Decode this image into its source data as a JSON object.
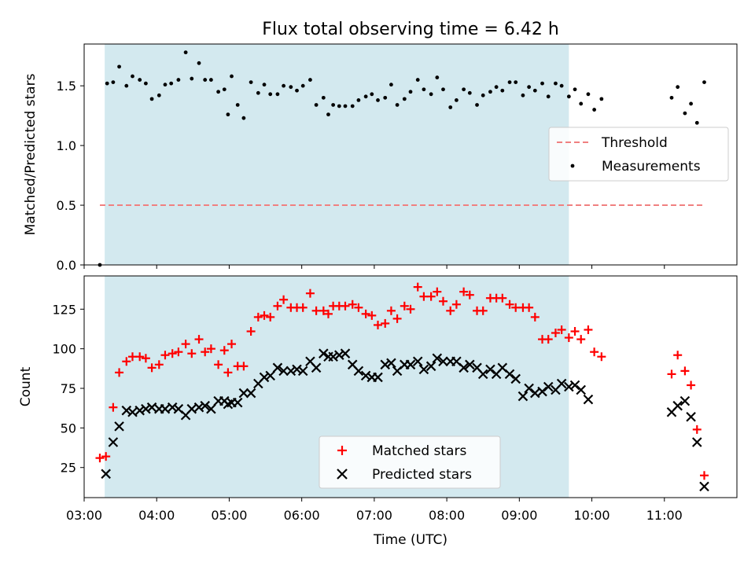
{
  "title": "Flux total observing time = 6.42 h",
  "chart_data": [
    {
      "type": "scatter",
      "panel": "top",
      "ylabel": "Matched/Predicted stars",
      "xlabel": "",
      "xlim": [
        "03:00",
        "12:00"
      ],
      "ylim": [
        0,
        1.85
      ],
      "yticks": [
        "0.0",
        "0.5",
        "1.0",
        "1.5"
      ],
      "shaded_region": {
        "x": [
          "03:17",
          "09:41"
        ],
        "color": "#d3e9ef"
      },
      "legend": {
        "position": "right",
        "entries": [
          "Threshold",
          "Measurements"
        ]
      },
      "threshold": {
        "name": "Threshold",
        "value": 0.5,
        "x": [
          "03:13",
          "11:33"
        ],
        "color": "#f08080",
        "style": "dashed"
      },
      "series": [
        {
          "name": "Measurements",
          "color": "#000000",
          "marker": "dot",
          "points": [
            [
              "03:13",
              0.0
            ],
            [
              "03:19",
              1.52
            ],
            [
              "03:24",
              1.53
            ],
            [
              "03:29",
              1.66
            ],
            [
              "03:35",
              1.5
            ],
            [
              "03:40",
              1.58
            ],
            [
              "03:46",
              1.55
            ],
            [
              "03:51",
              1.52
            ],
            [
              "03:56",
              1.39
            ],
            [
              "04:02",
              1.42
            ],
            [
              "04:07",
              1.51
            ],
            [
              "04:12",
              1.52
            ],
            [
              "04:18",
              1.55
            ],
            [
              "04:24",
              1.78
            ],
            [
              "04:29",
              1.56
            ],
            [
              "04:35",
              1.69
            ],
            [
              "04:40",
              1.55
            ],
            [
              "04:45",
              1.55
            ],
            [
              "04:51",
              1.45
            ],
            [
              "04:56",
              1.47
            ],
            [
              "04:59",
              1.26
            ],
            [
              "05:02",
              1.58
            ],
            [
              "05:07",
              1.34
            ],
            [
              "05:12",
              1.23
            ],
            [
              "05:18",
              1.53
            ],
            [
              "05:24",
              1.44
            ],
            [
              "05:29",
              1.51
            ],
            [
              "05:34",
              1.43
            ],
            [
              "05:40",
              1.43
            ],
            [
              "05:45",
              1.5
            ],
            [
              "05:51",
              1.49
            ],
            [
              "05:56",
              1.46
            ],
            [
              "06:01",
              1.5
            ],
            [
              "06:07",
              1.55
            ],
            [
              "06:12",
              1.34
            ],
            [
              "06:18",
              1.4
            ],
            [
              "06:22",
              1.26
            ],
            [
              "06:26",
              1.34
            ],
            [
              "06:31",
              1.33
            ],
            [
              "06:36",
              1.33
            ],
            [
              "06:42",
              1.33
            ],
            [
              "06:47",
              1.38
            ],
            [
              "06:53",
              1.41
            ],
            [
              "06:58",
              1.43
            ],
            [
              "07:03",
              1.38
            ],
            [
              "07:09",
              1.4
            ],
            [
              "07:14",
              1.51
            ],
            [
              "07:19",
              1.34
            ],
            [
              "07:25",
              1.39
            ],
            [
              "07:30",
              1.45
            ],
            [
              "07:36",
              1.55
            ],
            [
              "07:41",
              1.47
            ],
            [
              "07:47",
              1.43
            ],
            [
              "07:52",
              1.57
            ],
            [
              "07:57",
              1.47
            ],
            [
              "08:03",
              1.32
            ],
            [
              "08:08",
              1.38
            ],
            [
              "08:14",
              1.47
            ],
            [
              "08:19",
              1.44
            ],
            [
              "08:25",
              1.34
            ],
            [
              "08:30",
              1.42
            ],
            [
              "08:36",
              1.45
            ],
            [
              "08:41",
              1.49
            ],
            [
              "08:46",
              1.46
            ],
            [
              "08:52",
              1.53
            ],
            [
              "08:57",
              1.53
            ],
            [
              "09:03",
              1.42
            ],
            [
              "09:08",
              1.49
            ],
            [
              "09:13",
              1.46
            ],
            [
              "09:19",
              1.52
            ],
            [
              "09:24",
              1.41
            ],
            [
              "09:30",
              1.52
            ],
            [
              "09:35",
              1.5
            ],
            [
              "09:41",
              1.41
            ],
            [
              "09:46",
              1.47
            ],
            [
              "09:51",
              1.35
            ],
            [
              "09:57",
              1.43
            ],
            [
              "10:02",
              1.3
            ],
            [
              "10:08",
              1.39
            ],
            [
              "11:06",
              1.4
            ],
            [
              "11:11",
              1.49
            ],
            [
              "11:17",
              1.27
            ],
            [
              "11:22",
              1.35
            ],
            [
              "11:27",
              1.19
            ],
            [
              "11:33",
              1.53
            ]
          ]
        }
      ]
    },
    {
      "type": "scatter",
      "panel": "bottom",
      "xlabel": "Time (UTC)",
      "ylabel": "Count",
      "xlim": [
        "03:00",
        "12:00"
      ],
      "ylim": [
        6,
        146
      ],
      "yticks": [
        "25",
        "50",
        "75",
        "100",
        "125"
      ],
      "xticks": [
        "03:00",
        "04:00",
        "05:00",
        "06:00",
        "07:00",
        "08:00",
        "09:00",
        "10:00",
        "11:00"
      ],
      "shaded_region": {
        "x": [
          "03:17",
          "09:41"
        ],
        "color": "#d3e9ef"
      },
      "legend": {
        "position": "bottom-center",
        "entries": [
          "Matched stars",
          "Predicted stars"
        ]
      },
      "series": [
        {
          "name": "Matched stars",
          "color": "#ff0000",
          "marker": "plus",
          "points": [
            [
              "03:13",
              31
            ],
            [
              "03:18",
              32
            ],
            [
              "03:24",
              63
            ],
            [
              "03:29",
              85
            ],
            [
              "03:35",
              92
            ],
            [
              "03:40",
              95
            ],
            [
              "03:46",
              95
            ],
            [
              "03:51",
              94
            ],
            [
              "03:56",
              88
            ],
            [
              "04:02",
              90
            ],
            [
              "04:07",
              96
            ],
            [
              "04:13",
              97
            ],
            [
              "04:18",
              98
            ],
            [
              "04:24",
              103
            ],
            [
              "04:29",
              97
            ],
            [
              "04:35",
              106
            ],
            [
              "04:40",
              98
            ],
            [
              "04:45",
              100
            ],
            [
              "04:51",
              90
            ],
            [
              "04:56",
              99
            ],
            [
              "04:59",
              85
            ],
            [
              "05:02",
              103
            ],
            [
              "05:07",
              89
            ],
            [
              "05:12",
              89
            ],
            [
              "05:18",
              111
            ],
            [
              "05:24",
              120
            ],
            [
              "05:29",
              121
            ],
            [
              "05:34",
              120
            ],
            [
              "05:40",
              127
            ],
            [
              "05:45",
              131
            ],
            [
              "05:51",
              126
            ],
            [
              "05:56",
              126
            ],
            [
              "06:01",
              126
            ],
            [
              "06:07",
              135
            ],
            [
              "06:12",
              124
            ],
            [
              "06:18",
              124
            ],
            [
              "06:22",
              122
            ],
            [
              "06:26",
              127
            ],
            [
              "06:31",
              127
            ],
            [
              "06:36",
              127
            ],
            [
              "06:42",
              128
            ],
            [
              "06:47",
              126
            ],
            [
              "06:53",
              122
            ],
            [
              "06:58",
              121
            ],
            [
              "07:03",
              115
            ],
            [
              "07:09",
              116
            ],
            [
              "07:14",
              124
            ],
            [
              "07:19",
              119
            ],
            [
              "07:25",
              127
            ],
            [
              "07:30",
              125
            ],
            [
              "07:36",
              139
            ],
            [
              "07:41",
              133
            ],
            [
              "07:47",
              133
            ],
            [
              "07:52",
              136
            ],
            [
              "07:57",
              130
            ],
            [
              "08:03",
              124
            ],
            [
              "08:08",
              128
            ],
            [
              "08:14",
              136
            ],
            [
              "08:19",
              134
            ],
            [
              "08:25",
              124
            ],
            [
              "08:30",
              124
            ],
            [
              "08:36",
              132
            ],
            [
              "08:41",
              132
            ],
            [
              "08:46",
              132
            ],
            [
              "08:52",
              128
            ],
            [
              "08:57",
              126
            ],
            [
              "09:03",
              126
            ],
            [
              "09:08",
              126
            ],
            [
              "09:13",
              120
            ],
            [
              "09:19",
              106
            ],
            [
              "09:24",
              106
            ],
            [
              "09:30",
              110
            ],
            [
              "09:35",
              112
            ],
            [
              "09:41",
              107
            ],
            [
              "09:46",
              111
            ],
            [
              "09:51",
              106
            ],
            [
              "09:57",
              112
            ],
            [
              "10:02",
              98
            ],
            [
              "10:08",
              95
            ],
            [
              "11:06",
              84
            ],
            [
              "11:11",
              96
            ],
            [
              "11:17",
              86
            ],
            [
              "11:22",
              77
            ],
            [
              "11:27",
              49
            ],
            [
              "11:33",
              20
            ]
          ]
        },
        {
          "name": "Predicted stars",
          "color": "#000000",
          "marker": "x",
          "points": [
            [
              "03:18",
              21
            ],
            [
              "03:24",
              41
            ],
            [
              "03:29",
              51
            ],
            [
              "03:35",
              61
            ],
            [
              "03:40",
              60
            ],
            [
              "03:46",
              61
            ],
            [
              "03:51",
              62
            ],
            [
              "03:56",
              63
            ],
            [
              "04:02",
              62
            ],
            [
              "04:07",
              62
            ],
            [
              "04:13",
              63
            ],
            [
              "04:18",
              62
            ],
            [
              "04:24",
              58
            ],
            [
              "04:29",
              62
            ],
            [
              "04:35",
              63
            ],
            [
              "04:40",
              64
            ],
            [
              "04:45",
              62
            ],
            [
              "04:51",
              67
            ],
            [
              "04:56",
              67
            ],
            [
              "04:59",
              65
            ],
            [
              "05:02",
              66
            ],
            [
              "05:07",
              66
            ],
            [
              "05:12",
              72
            ],
            [
              "05:18",
              72
            ],
            [
              "05:24",
              78
            ],
            [
              "05:29",
              82
            ],
            [
              "05:34",
              83
            ],
            [
              "05:40",
              88
            ],
            [
              "05:45",
              86
            ],
            [
              "05:51",
              86
            ],
            [
              "05:56",
              87
            ],
            [
              "06:01",
              86
            ],
            [
              "06:07",
              92
            ],
            [
              "06:12",
              88
            ],
            [
              "06:18",
              97
            ],
            [
              "06:22",
              95
            ],
            [
              "06:26",
              95
            ],
            [
              "06:31",
              96
            ],
            [
              "06:36",
              97
            ],
            [
              "06:42",
              90
            ],
            [
              "06:47",
              86
            ],
            [
              "06:53",
              83
            ],
            [
              "06:58",
              82
            ],
            [
              "07:03",
              82
            ],
            [
              "07:09",
              90
            ],
            [
              "07:14",
              91
            ],
            [
              "07:19",
              86
            ],
            [
              "07:25",
              90
            ],
            [
              "07:30",
              90
            ],
            [
              "07:36",
              92
            ],
            [
              "07:41",
              87
            ],
            [
              "07:47",
              89
            ],
            [
              "07:52",
              94
            ],
            [
              "07:57",
              92
            ],
            [
              "08:03",
              92
            ],
            [
              "08:08",
              92
            ],
            [
              "08:14",
              88
            ],
            [
              "08:19",
              90
            ],
            [
              "08:25",
              88
            ],
            [
              "08:30",
              84
            ],
            [
              "08:36",
              87
            ],
            [
              "08:41",
              84
            ],
            [
              "08:46",
              88
            ],
            [
              "08:52",
              84
            ],
            [
              "08:57",
              81
            ],
            [
              "09:03",
              70
            ],
            [
              "09:08",
              75
            ],
            [
              "09:13",
              72
            ],
            [
              "09:19",
              73
            ],
            [
              "09:24",
              76
            ],
            [
              "09:30",
              74
            ],
            [
              "09:35",
              78
            ],
            [
              "09:41",
              76
            ],
            [
              "09:46",
              77
            ],
            [
              "09:51",
              74
            ],
            [
              "09:57",
              68
            ],
            [
              "11:06",
              60
            ],
            [
              "11:11",
              64
            ],
            [
              "11:17",
              67
            ],
            [
              "11:22",
              57
            ],
            [
              "11:27",
              41
            ],
            [
              "11:33",
              13
            ]
          ]
        }
      ]
    }
  ]
}
